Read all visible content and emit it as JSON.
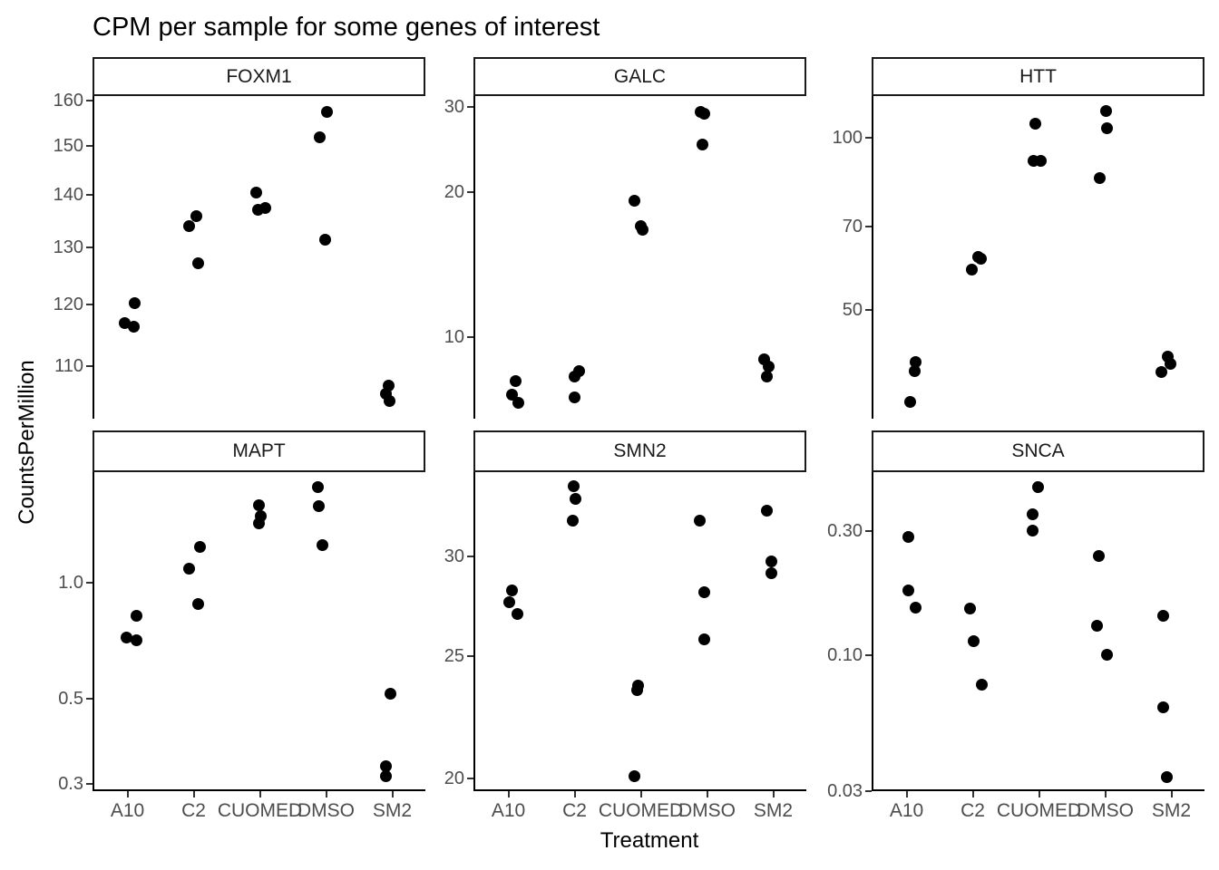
{
  "title": "CPM per sample for some genes of interest",
  "axes": {
    "x_label": "Treatment",
    "y_label": "CountsPerMillion"
  },
  "colors": {
    "background": "#ffffff",
    "point": "#000000",
    "axis_line": "#000000",
    "tick_mark": "#333333",
    "axis_text": "#4d4d4d",
    "strip_border": "#1a1a1a",
    "strip_fill": "#ffffff",
    "title_text": "#000000"
  },
  "chart_data": {
    "type": "scatter",
    "title": "CPM per sample for some genes of interest",
    "xlabel": "Treatment",
    "ylabel": "CountsPerMillion",
    "y_scale": "log10",
    "grid": "off",
    "legend": "none",
    "facet_grid": {
      "rows": 2,
      "cols": 3
    },
    "categories": [
      "A10",
      "C2",
      "CUOMED",
      "DMSO",
      "SM2"
    ],
    "facets": [
      {
        "name": "FOXM1",
        "row": 0,
        "col": 0,
        "ylim": [
          102.1,
          161.0
        ],
        "yticks": [
          {
            "label": "160",
            "value": 160
          },
          {
            "label": "150",
            "value": 150
          },
          {
            "label": "140",
            "value": 140
          },
          {
            "label": "130",
            "value": 130
          },
          {
            "label": "120",
            "value": 120
          },
          {
            "label": "110",
            "value": 110
          }
        ],
        "points": [
          {
            "treatment": "A10",
            "value": 116.8,
            "dx": -3
          },
          {
            "treatment": "A10",
            "value": 116.3,
            "dx": 7
          },
          {
            "treatment": "A10",
            "value": 120.2,
            "dx": 8
          },
          {
            "treatment": "C2",
            "value": 134.0,
            "dx": -5
          },
          {
            "treatment": "C2",
            "value": 135.9,
            "dx": 3
          },
          {
            "treatment": "C2",
            "value": 127.2,
            "dx": 5
          },
          {
            "treatment": "CUOMED",
            "value": 140.5,
            "dx": -4
          },
          {
            "treatment": "CUOMED",
            "value": 137.2,
            "dx": -2
          },
          {
            "treatment": "CUOMED",
            "value": 137.5,
            "dx": 6
          },
          {
            "treatment": "DMSO",
            "value": 157.4,
            "dx": 1
          },
          {
            "treatment": "DMSO",
            "value": 151.8,
            "dx": -7
          },
          {
            "treatment": "DMSO",
            "value": 131.5,
            "dx": -1
          },
          {
            "treatment": "SM2",
            "value": 107.0,
            "dx": -4
          },
          {
            "treatment": "SM2",
            "value": 105.8,
            "dx": -7
          },
          {
            "treatment": "SM2",
            "value": 104.7,
            "dx": -3
          }
        ]
      },
      {
        "name": "GALC",
        "row": 0,
        "col": 1,
        "ylim": [
          6.78,
          31.6
        ],
        "yticks": [
          {
            "label": "30",
            "value": 30
          },
          {
            "label": "20",
            "value": 20
          },
          {
            "label": "10",
            "value": 10
          }
        ],
        "points": [
          {
            "treatment": "A10",
            "value": 8.1,
            "dx": 8
          },
          {
            "treatment": "A10",
            "value": 7.6,
            "dx": 4
          },
          {
            "treatment": "A10",
            "value": 7.3,
            "dx": 11
          },
          {
            "treatment": "C2",
            "value": 8.5,
            "dx": 5
          },
          {
            "treatment": "C2",
            "value": 8.3,
            "dx": 0
          },
          {
            "treatment": "C2",
            "value": 7.5,
            "dx": 0
          },
          {
            "treatment": "CUOMED",
            "value": 19.2,
            "dx": -7
          },
          {
            "treatment": "CUOMED",
            "value": 17.0,
            "dx": 0
          },
          {
            "treatment": "CUOMED",
            "value": 16.7,
            "dx": 2
          },
          {
            "treatment": "DMSO",
            "value": 29.3,
            "dx": -7
          },
          {
            "treatment": "DMSO",
            "value": 29.0,
            "dx": -3
          },
          {
            "treatment": "DMSO",
            "value": 25.1,
            "dx": -5
          },
          {
            "treatment": "SM2",
            "value": 9.0,
            "dx": -10
          },
          {
            "treatment": "SM2",
            "value": 8.7,
            "dx": -5
          },
          {
            "treatment": "SM2",
            "value": 8.3,
            "dx": -7
          }
        ]
      },
      {
        "name": "HTT",
        "row": 0,
        "col": 2,
        "ylim": [
          32.3,
          118.3
        ],
        "yticks": [
          {
            "label": "100",
            "value": 100
          },
          {
            "label": "70",
            "value": 70
          },
          {
            "label": "50",
            "value": 50
          }
        ],
        "points": [
          {
            "treatment": "A10",
            "value": 40.5,
            "dx": 10
          },
          {
            "treatment": "A10",
            "value": 39.1,
            "dx": 9
          },
          {
            "treatment": "A10",
            "value": 34.5,
            "dx": 4
          },
          {
            "treatment": "C2",
            "value": 62.0,
            "dx": 6
          },
          {
            "treatment": "C2",
            "value": 61.5,
            "dx": 9
          },
          {
            "treatment": "C2",
            "value": 58.9,
            "dx": -1
          },
          {
            "treatment": "CUOMED",
            "value": 106.0,
            "dx": -4
          },
          {
            "treatment": "CUOMED",
            "value": 91.2,
            "dx": -6
          },
          {
            "treatment": "CUOMED",
            "value": 91.0,
            "dx": 2
          },
          {
            "treatment": "DMSO",
            "value": 111.3,
            "dx": 1
          },
          {
            "treatment": "DMSO",
            "value": 103.9,
            "dx": 2
          },
          {
            "treatment": "DMSO",
            "value": 85.0,
            "dx": -6
          },
          {
            "treatment": "SM2",
            "value": 41.5,
            "dx": -4
          },
          {
            "treatment": "SM2",
            "value": 40.3,
            "dx": -1
          },
          {
            "treatment": "SM2",
            "value": 39.0,
            "dx": -11
          }
        ]
      },
      {
        "name": "MAPT",
        "row": 1,
        "col": 0,
        "ylim": [
          0.29,
          1.938
        ],
        "yticks": [
          {
            "label": "1.0",
            "value": 1.0
          },
          {
            "label": "0.5",
            "value": 0.5
          },
          {
            "label": "0.3",
            "value": 0.3
          }
        ],
        "points": [
          {
            "treatment": "A10",
            "value": 0.82,
            "dx": 10
          },
          {
            "treatment": "A10",
            "value": 0.72,
            "dx": -1
          },
          {
            "treatment": "A10",
            "value": 0.71,
            "dx": 10
          },
          {
            "treatment": "C2",
            "value": 1.24,
            "dx": 7
          },
          {
            "treatment": "C2",
            "value": 1.09,
            "dx": -5
          },
          {
            "treatment": "C2",
            "value": 0.88,
            "dx": 5
          },
          {
            "treatment": "CUOMED",
            "value": 1.59,
            "dx": -1
          },
          {
            "treatment": "CUOMED",
            "value": 1.49,
            "dx": 1
          },
          {
            "treatment": "CUOMED",
            "value": 1.43,
            "dx": -1
          },
          {
            "treatment": "DMSO",
            "value": 1.77,
            "dx": -9
          },
          {
            "treatment": "DMSO",
            "value": 1.58,
            "dx": -8
          },
          {
            "treatment": "DMSO",
            "value": 1.25,
            "dx": -4
          },
          {
            "treatment": "SM2",
            "value": 0.515,
            "dx": -2
          },
          {
            "treatment": "SM2",
            "value": 0.333,
            "dx": -7
          },
          {
            "treatment": "SM2",
            "value": 0.313,
            "dx": -7
          }
        ]
      },
      {
        "name": "SMN2",
        "row": 1,
        "col": 1,
        "ylim": [
          19.61,
          34.98
        ],
        "yticks": [
          {
            "label": "30",
            "value": 30
          },
          {
            "label": "25",
            "value": 25
          },
          {
            "label": "20",
            "value": 20
          }
        ],
        "points": [
          {
            "treatment": "A10",
            "value": 28.2,
            "dx": 4
          },
          {
            "treatment": "A10",
            "value": 27.6,
            "dx": 1
          },
          {
            "treatment": "A10",
            "value": 27.0,
            "dx": 10
          },
          {
            "treatment": "C2",
            "value": 34.1,
            "dx": -1
          },
          {
            "treatment": "C2",
            "value": 33.3,
            "dx": 1
          },
          {
            "treatment": "C2",
            "value": 32.0,
            "dx": -2
          },
          {
            "treatment": "CUOMED",
            "value": 23.7,
            "dx": -3
          },
          {
            "treatment": "CUOMED",
            "value": 23.5,
            "dx": -4
          },
          {
            "treatment": "CUOMED",
            "value": 20.1,
            "dx": -7
          },
          {
            "treatment": "DMSO",
            "value": 32.0,
            "dx": -8
          },
          {
            "treatment": "DMSO",
            "value": 28.1,
            "dx": -3
          },
          {
            "treatment": "DMSO",
            "value": 25.8,
            "dx": -3
          },
          {
            "treatment": "SM2",
            "value": 32.6,
            "dx": -7
          },
          {
            "treatment": "SM2",
            "value": 29.7,
            "dx": -2
          },
          {
            "treatment": "SM2",
            "value": 29.1,
            "dx": -2
          }
        ]
      },
      {
        "name": "SNCA",
        "row": 1,
        "col": 2,
        "ylim": [
          0.0304,
          0.5056
        ],
        "yticks": [
          {
            "label": "0.30",
            "value": 0.3
          },
          {
            "label": "0.10",
            "value": 0.1
          },
          {
            "label": "0.03",
            "value": 0.03
          }
        ],
        "points": [
          {
            "treatment": "A10",
            "value": 0.285,
            "dx": 2
          },
          {
            "treatment": "A10",
            "value": 0.177,
            "dx": 2
          },
          {
            "treatment": "A10",
            "value": 0.152,
            "dx": 10
          },
          {
            "treatment": "C2",
            "value": 0.151,
            "dx": -3
          },
          {
            "treatment": "C2",
            "value": 0.113,
            "dx": 1
          },
          {
            "treatment": "C2",
            "value": 0.077,
            "dx": 10
          },
          {
            "treatment": "CUOMED",
            "value": 0.444,
            "dx": -1
          },
          {
            "treatment": "CUOMED",
            "value": 0.349,
            "dx": -7
          },
          {
            "treatment": "CUOMED",
            "value": 0.3,
            "dx": -7
          },
          {
            "treatment": "DMSO",
            "value": 0.24,
            "dx": -7
          },
          {
            "treatment": "DMSO",
            "value": 0.13,
            "dx": -9
          },
          {
            "treatment": "DMSO",
            "value": 0.1,
            "dx": 2
          },
          {
            "treatment": "SM2",
            "value": 0.142,
            "dx": -9
          },
          {
            "treatment": "SM2",
            "value": 0.063,
            "dx": -9
          },
          {
            "treatment": "SM2",
            "value": 0.034,
            "dx": -5
          }
        ]
      }
    ]
  }
}
